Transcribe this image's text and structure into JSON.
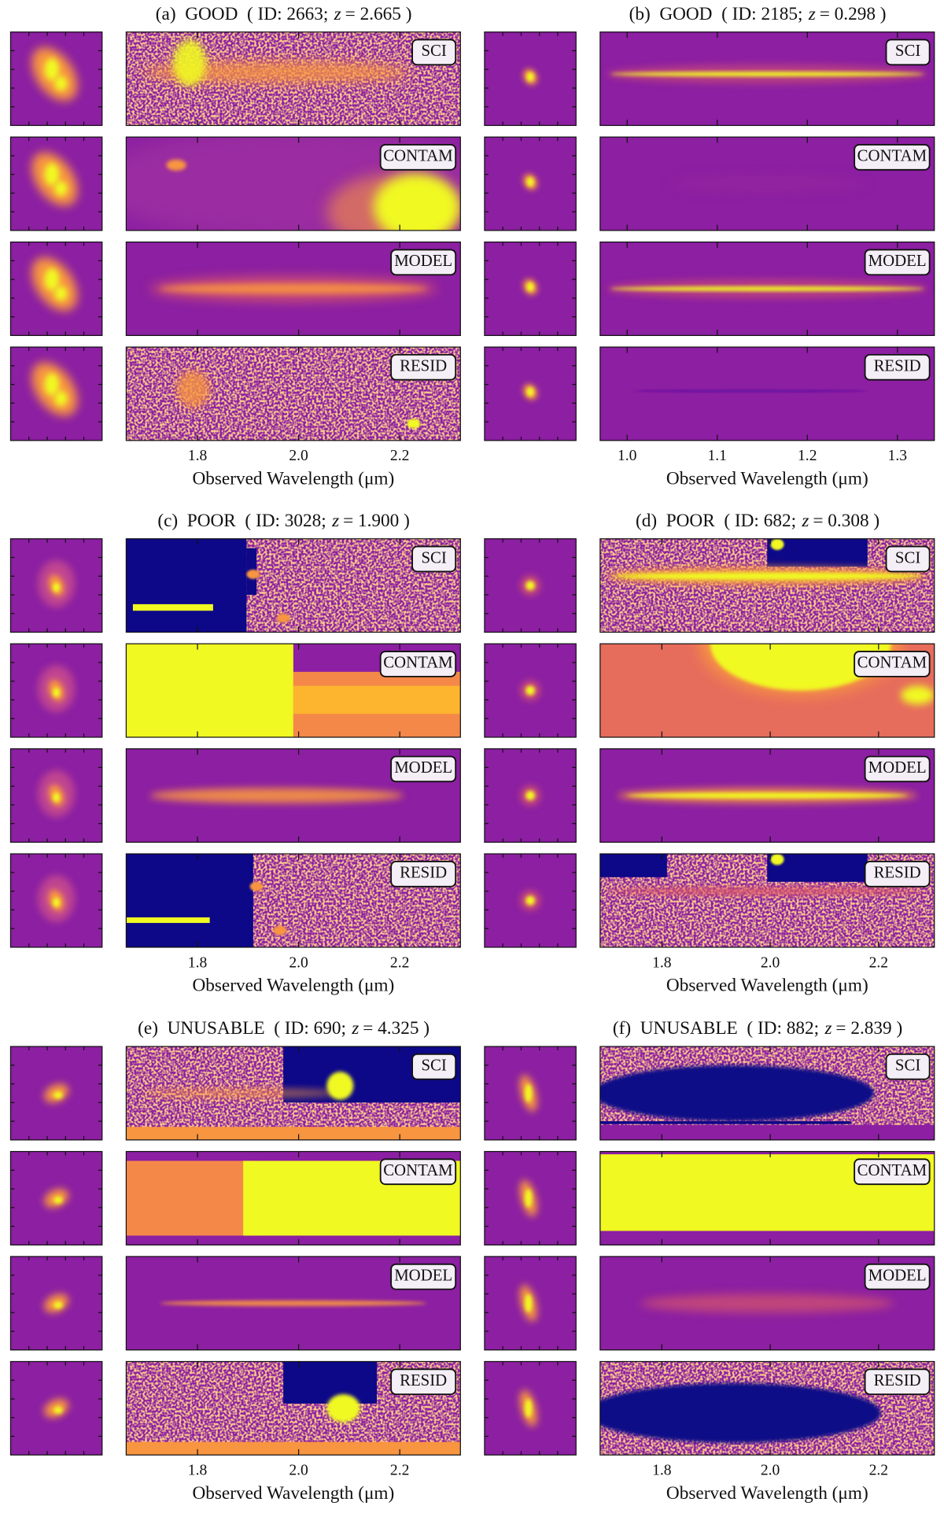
{
  "chart_data": [
    {
      "type": "image",
      "title_prefix": "(a)  GOOD  ( ID: 2663;",
      "z_symbol": "z",
      "z_value": "= 2.665 )",
      "row_labels": [
        "SCI",
        "CONTAM",
        "MODEL",
        "RESID"
      ],
      "xlabel": "Observed Wavelength (μm)",
      "xlim": [
        1.659,
        2.32
      ],
      "xticks": [
        1.8,
        {
          "value": 2.0,
          "label": "2.0"
        },
        2.2
      ]
    },
    {
      "type": "image",
      "title_prefix": "(b)  GOOD  ( ID: 2185;",
      "z_symbol": "z",
      "z_value": "= 0.298 )",
      "row_labels": [
        "SCI",
        "CONTAM",
        "MODEL",
        "RESID"
      ],
      "xlabel": "Observed Wavelength (μm)",
      "xlim": [
        0.97,
        1.341
      ],
      "xticks": [
        {
          "value": 1.0,
          "label": "1.0"
        },
        1.1,
        1.2,
        1.3
      ]
    },
    {
      "type": "image",
      "title_prefix": "(c)  POOR  ( ID: 3028;",
      "z_symbol": "z",
      "z_value": "= 1.900 )",
      "row_labels": [
        "SCI",
        "CONTAM",
        "MODEL",
        "RESID"
      ],
      "xlabel": "Observed Wavelength (μm)",
      "xlim": [
        1.659,
        2.32
      ],
      "xticks": [
        1.8,
        {
          "value": 2.0,
          "label": "2.0"
        },
        2.2
      ]
    },
    {
      "type": "image",
      "title_prefix": "(d)  POOR  ( ID: 682;",
      "z_symbol": "z",
      "z_value": "= 0.308 )",
      "row_labels": [
        "SCI",
        "CONTAM",
        "MODEL",
        "RESID"
      ],
      "xlabel": "Observed Wavelength (μm)",
      "xlim": [
        1.686,
        2.303
      ],
      "xticks": [
        1.8,
        {
          "value": 2.0,
          "label": "2.0"
        },
        2.2
      ]
    },
    {
      "type": "image",
      "title_prefix": "(e)  UNUSABLE  ( ID: 690;",
      "z_symbol": "z",
      "z_value": "= 4.325 )",
      "row_labels": [
        "SCI",
        "CONTAM",
        "MODEL",
        "RESID"
      ],
      "xlabel": "Observed Wavelength (μm)",
      "xlim": [
        1.659,
        2.32
      ],
      "xticks": [
        1.8,
        {
          "value": 2.0,
          "label": "2.0"
        },
        2.2
      ]
    },
    {
      "type": "image",
      "title_prefix": "(f)  UNUSABLE  ( ID: 882;",
      "z_symbol": "z",
      "z_value": "= 2.839 )",
      "row_labels": [
        "SCI",
        "CONTAM",
        "MODEL",
        "RESID"
      ],
      "xlabel": "Observed Wavelength (μm)",
      "xlim": [
        1.686,
        2.303
      ],
      "xticks": [
        1.8,
        {
          "value": 2.0,
          "label": "2.0"
        },
        2.2
      ]
    }
  ]
}
